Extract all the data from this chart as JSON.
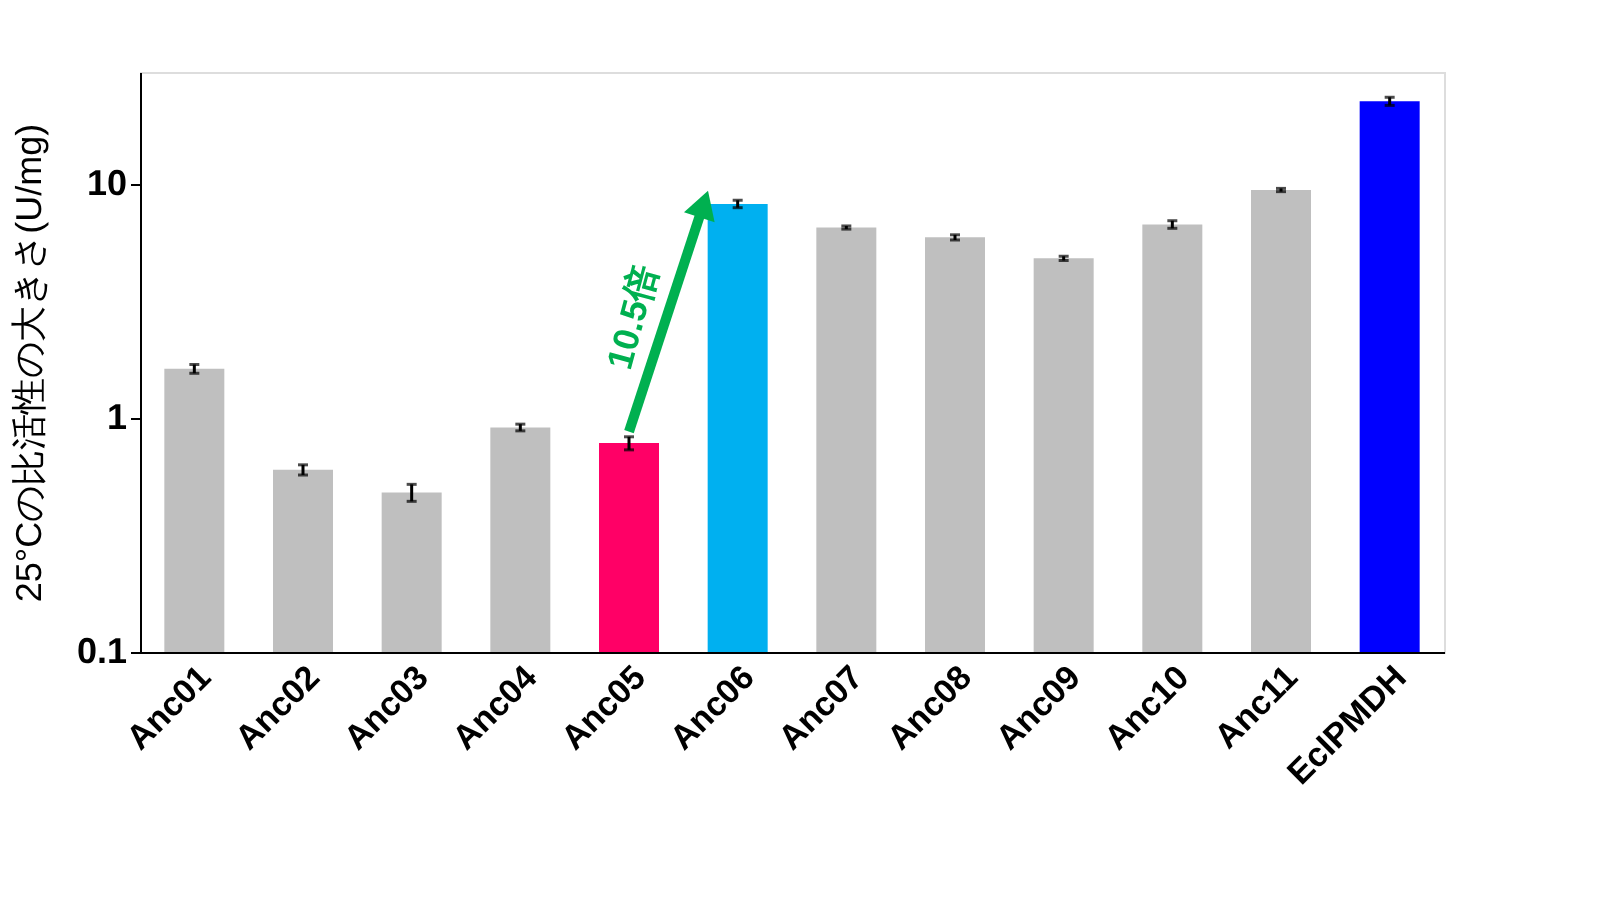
{
  "chart_data": {
    "type": "bar",
    "ylabel": "25°Cの比活性の大きさ(U/mg)",
    "categories": [
      "Anc01",
      "Anc02",
      "Anc03",
      "Anc04",
      "Anc05",
      "Anc06",
      "Anc07",
      "Anc08",
      "Anc09",
      "Anc10",
      "Anc11",
      "EcIPMDH"
    ],
    "values": [
      1.62,
      0.6,
      0.48,
      0.91,
      0.78,
      8.2,
      6.5,
      5.9,
      4.8,
      6.7,
      9.4,
      22.5
    ],
    "errors": [
      0.07,
      0.03,
      0.04,
      0.03,
      0.05,
      0.3,
      0.1,
      0.15,
      0.1,
      0.25,
      0.15,
      0.9
    ],
    "colors": [
      "#bfbfbf",
      "#bfbfbf",
      "#bfbfbf",
      "#bfbfbf",
      "#ff0066",
      "#00b0f0",
      "#bfbfbf",
      "#bfbfbf",
      "#bfbfbf",
      "#bfbfbf",
      "#bfbfbf",
      "#0000ff"
    ],
    "log": true,
    "ylim": [
      0.1,
      30
    ],
    "yticks": [
      0.1,
      1,
      10
    ],
    "grid": false,
    "annotations": [
      "10.5倍"
    ]
  }
}
